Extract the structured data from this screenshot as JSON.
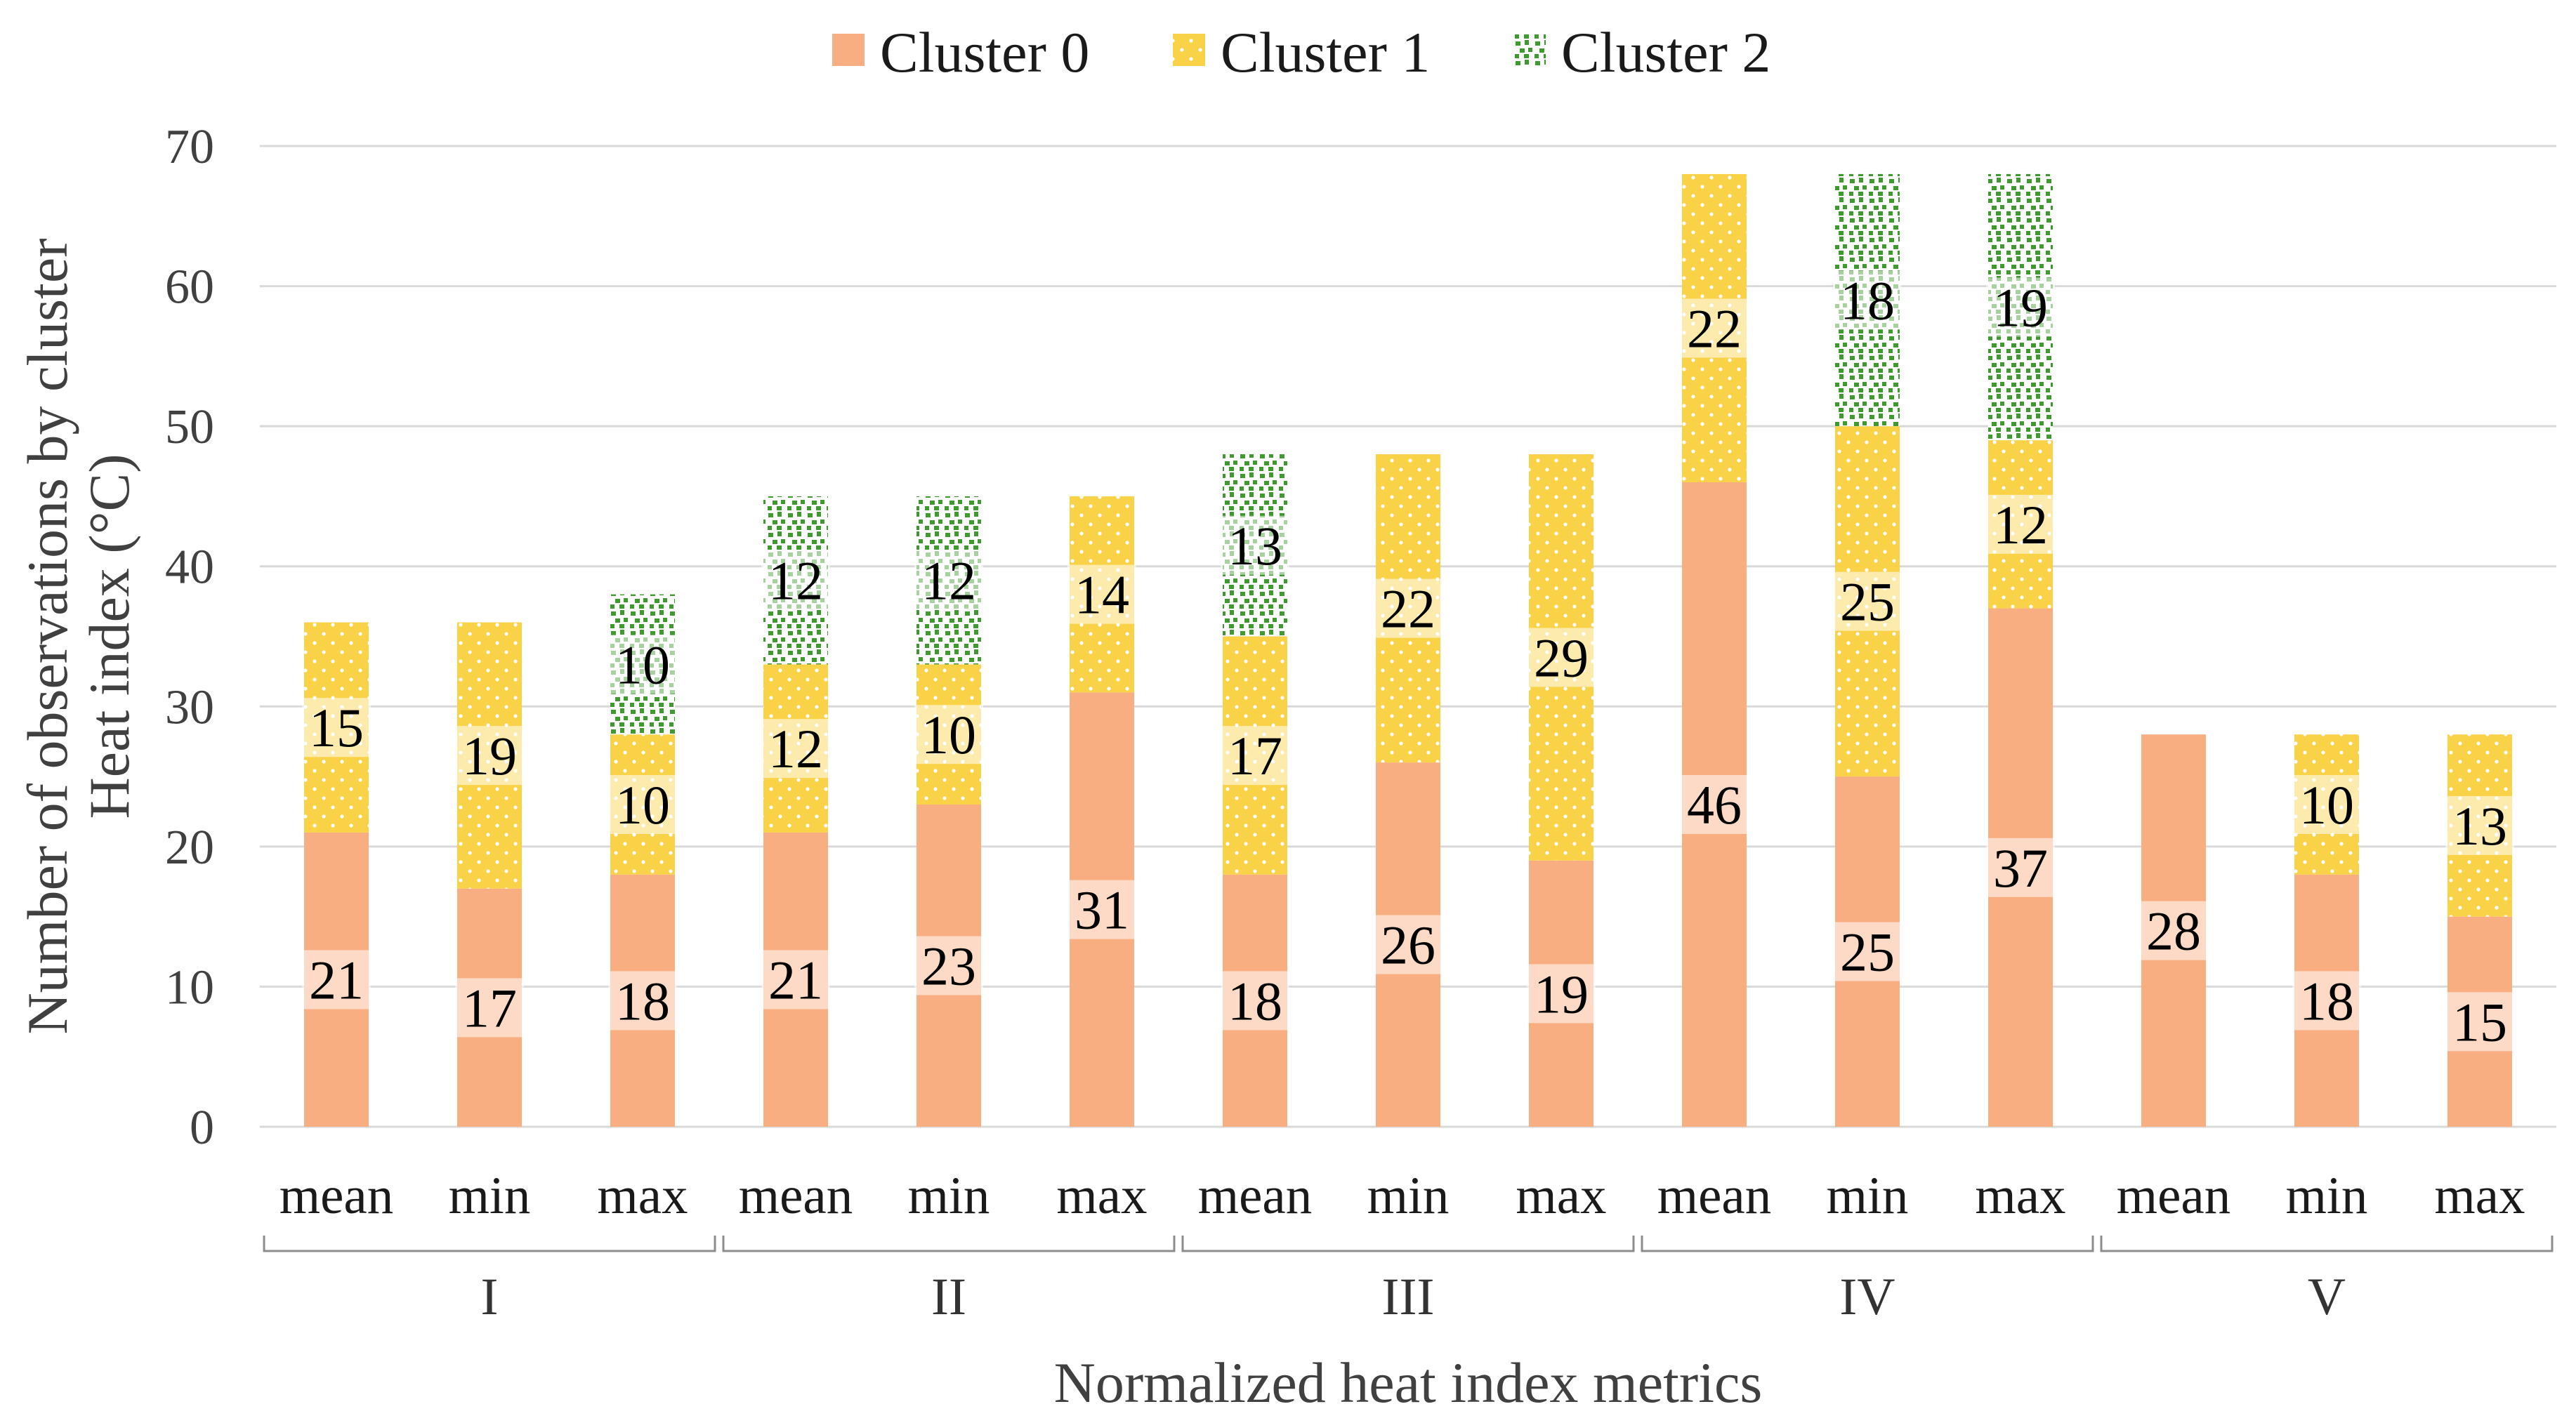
{
  "chart_data": {
    "type": "bar",
    "stacked": true,
    "title": "",
    "xlabel": "Normalized heat index metrics",
    "ylabel_lines": [
      "Number of observations by cluster",
      "Heat index (°C)"
    ],
    "ylim": [
      0,
      70
    ],
    "yticks": [
      0,
      10,
      20,
      30,
      40,
      50,
      60,
      70
    ],
    "grid": true,
    "legend_position": "top-center",
    "groups": [
      "I",
      "II",
      "III",
      "IV",
      "V"
    ],
    "metrics": [
      "mean",
      "min",
      "max"
    ],
    "categories": [
      "mean",
      "min",
      "max",
      "mean",
      "min",
      "max",
      "mean",
      "min",
      "max",
      "mean",
      "min",
      "max",
      "mean",
      "min",
      "max"
    ],
    "series": [
      {
        "name": "Cluster 0",
        "color": "#F8AE80",
        "pattern": "solid",
        "values": [
          21,
          17,
          18,
          21,
          23,
          31,
          18,
          26,
          19,
          46,
          25,
          37,
          28,
          18,
          15
        ]
      },
      {
        "name": "Cluster 1",
        "color": "#F9D248",
        "pattern": "dots",
        "values": [
          15,
          19,
          10,
          12,
          10,
          14,
          17,
          22,
          29,
          22,
          25,
          12,
          0,
          10,
          13
        ]
      },
      {
        "name": "Cluster 2",
        "color": "#3E9A2E",
        "pattern": "confetti",
        "values": [
          0,
          0,
          10,
          12,
          12,
          0,
          13,
          0,
          0,
          0,
          18,
          19,
          0,
          0,
          0
        ]
      }
    ]
  }
}
